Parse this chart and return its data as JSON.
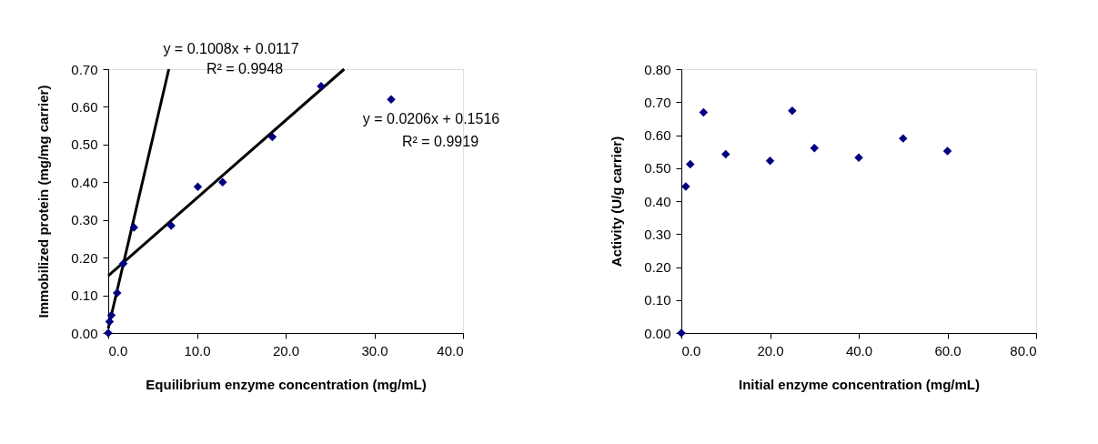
{
  "chart_data": [
    {
      "type": "scatter",
      "xlabel": "Equilibrium enzyme concentration (mg/mL)",
      "ylabel": "Immobilized protein (mg/mg carrier)",
      "xlim": [
        0,
        40
      ],
      "ylim": [
        0,
        0.7
      ],
      "xticks": [
        {
          "value": 0,
          "label": "0.0"
        },
        {
          "value": 10,
          "label": "10.0"
        },
        {
          "value": 20,
          "label": "20.0"
        },
        {
          "value": 30,
          "label": "30.0"
        },
        {
          "value": 40,
          "label": "40.0"
        }
      ],
      "yticks": [
        {
          "value": 0,
          "label": "0.00"
        },
        {
          "value": 0.1,
          "label": "0.10"
        },
        {
          "value": 0.2,
          "label": "0.20"
        },
        {
          "value": 0.3,
          "label": "0.30"
        },
        {
          "value": 0.4,
          "label": "0.40"
        },
        {
          "value": 0.5,
          "label": "0.50"
        },
        {
          "value": 0.6,
          "label": "0.60"
        },
        {
          "value": 0.7,
          "label": "0.70"
        }
      ],
      "grid": false,
      "marker": "diamond",
      "series": [
        {
          "color": "#000080",
          "x": [
            0,
            0.15,
            0.35,
            1.0,
            1.7,
            2.9,
            7.1,
            10.1,
            12.9,
            18.5,
            24.0,
            31.9
          ],
          "values": [
            0,
            0.03,
            0.047,
            0.106,
            0.184,
            0.28,
            0.285,
            0.388,
            0.4,
            0.52,
            0.655,
            0.62
          ]
        },
        {
          "type": "line",
          "color": "#000000",
          "marker": "none",
          "line_style": "solid",
          "x": [
            0,
            6.83
          ],
          "values": [
            0.012,
            0.7
          ]
        },
        {
          "type": "line",
          "color": "#000000",
          "marker": "none",
          "line_style": "solid",
          "x": [
            0,
            26.6
          ],
          "values": [
            0.152,
            0.7
          ]
        }
      ],
      "annotations": [
        "y = 0.1008x + 0.0117",
        "R² = 0.9948",
        "y = 0.0206x + 0.1516",
        "R² = 0.9919"
      ]
    },
    {
      "type": "scatter",
      "xlabel": "Initial enzyme concentration (mg/mL)",
      "ylabel": "Activity (U/g carrier)",
      "xlim": [
        0,
        80
      ],
      "ylim": [
        0,
        0.8
      ],
      "xticks": [
        {
          "value": 0,
          "label": "0.0"
        },
        {
          "value": 20,
          "label": "20.0"
        },
        {
          "value": 40,
          "label": "40.0"
        },
        {
          "value": 60,
          "label": "60.0"
        },
        {
          "value": 80,
          "label": "80.0"
        }
      ],
      "yticks": [
        {
          "value": 0,
          "label": "0.00"
        },
        {
          "value": 0.1,
          "label": "0.10"
        },
        {
          "value": 0.2,
          "label": "0.20"
        },
        {
          "value": 0.3,
          "label": "0.30"
        },
        {
          "value": 0.4,
          "label": "0.40"
        },
        {
          "value": 0.5,
          "label": "0.50"
        },
        {
          "value": 0.6,
          "label": "0.60"
        },
        {
          "value": 0.7,
          "label": "0.70"
        },
        {
          "value": 0.8,
          "label": "0.80"
        }
      ],
      "grid": false,
      "marker": "diamond",
      "series": [
        {
          "color": "#000080",
          "x": [
            0,
            1,
            2,
            5,
            10,
            20,
            25,
            30,
            40,
            50,
            60
          ],
          "values": [
            0,
            0.444,
            0.512,
            0.669,
            0.542,
            0.522,
            0.674,
            0.561,
            0.532,
            0.59,
            0.552
          ]
        }
      ]
    }
  ]
}
